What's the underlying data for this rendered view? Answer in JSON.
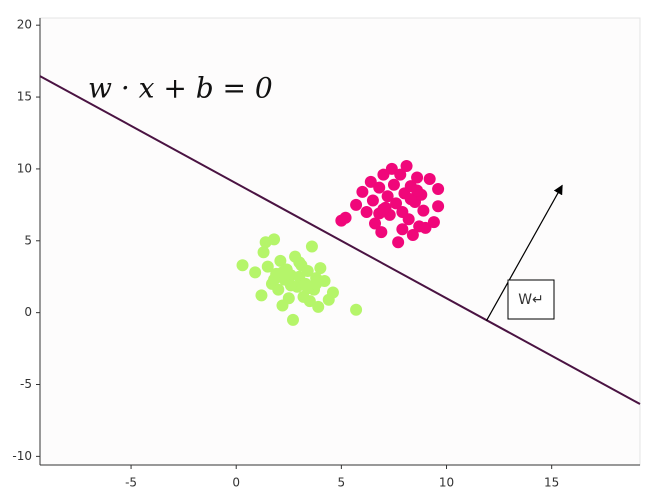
{
  "chart_data": {
    "type": "scatter",
    "equation": "w · x + b = 0",
    "vector_label": "W↵",
    "xlim": [
      -9.33,
      19.2
    ],
    "ylim": [
      -10.6,
      20.5
    ],
    "xticks": [
      -5,
      0,
      5,
      10,
      15
    ],
    "yticks": [
      -10,
      -5,
      0,
      5,
      10,
      15,
      20
    ],
    "series": [
      {
        "color": "#f0077a",
        "x": [
          5.0,
          5.2,
          5.7,
          6.0,
          6.2,
          6.4,
          6.5,
          6.6,
          6.8,
          6.9,
          7.0,
          7.1,
          7.2,
          7.3,
          7.4,
          7.5,
          7.6,
          7.7,
          7.8,
          7.9,
          8.0,
          8.1,
          8.2,
          8.3,
          8.4,
          8.5,
          8.6,
          8.7,
          8.8,
          8.9,
          9.0,
          9.2,
          9.4,
          9.6,
          9.6,
          7.0,
          7.9,
          8.3,
          6.8,
          8.6
        ],
        "y": [
          6.4,
          6.6,
          7.5,
          8.4,
          7.0,
          9.1,
          7.8,
          6.2,
          8.7,
          5.6,
          9.6,
          7.3,
          8.1,
          6.8,
          10.0,
          8.9,
          7.6,
          4.9,
          9.6,
          7.0,
          8.3,
          10.2,
          6.5,
          8.8,
          5.4,
          7.7,
          9.4,
          6.0,
          8.2,
          7.1,
          5.9,
          9.3,
          6.3,
          8.6,
          7.4,
          7.2,
          5.8,
          7.9,
          6.9,
          8.5
        ]
      },
      {
        "color": "#b5f56a",
        "x": [
          0.3,
          0.9,
          1.2,
          1.4,
          1.5,
          1.7,
          1.8,
          1.9,
          2.0,
          2.1,
          2.2,
          2.3,
          2.4,
          2.5,
          2.6,
          2.7,
          2.8,
          2.9,
          3.0,
          3.1,
          3.2,
          3.3,
          3.4,
          3.5,
          3.6,
          3.7,
          3.8,
          3.9,
          4.0,
          4.2,
          4.4,
          4.6,
          5.7,
          1.3,
          1.8,
          2.6,
          3.0,
          3.4,
          2.2,
          3.8
        ],
        "y": [
          3.3,
          2.8,
          1.2,
          4.9,
          3.2,
          2.0,
          5.1,
          2.7,
          1.6,
          3.6,
          0.5,
          2.3,
          3.0,
          1.0,
          2.6,
          -0.5,
          3.9,
          1.8,
          2.5,
          3.3,
          1.1,
          2.0,
          2.9,
          0.8,
          4.6,
          1.6,
          2.4,
          0.4,
          3.1,
          2.2,
          0.9,
          1.4,
          0.2,
          4.2,
          2.3,
          1.9,
          3.5,
          1.7,
          2.8,
          2.0
        ]
      }
    ],
    "line": {
      "color": "#4a1342",
      "x": [
        -9.33,
        19.2
      ],
      "y": [
        16.46,
        -6.36
      ]
    },
    "arrow": {
      "color": "#000000",
      "x": [
        11.9,
        15.5
      ],
      "y": [
        -0.56,
        8.85
      ]
    }
  }
}
